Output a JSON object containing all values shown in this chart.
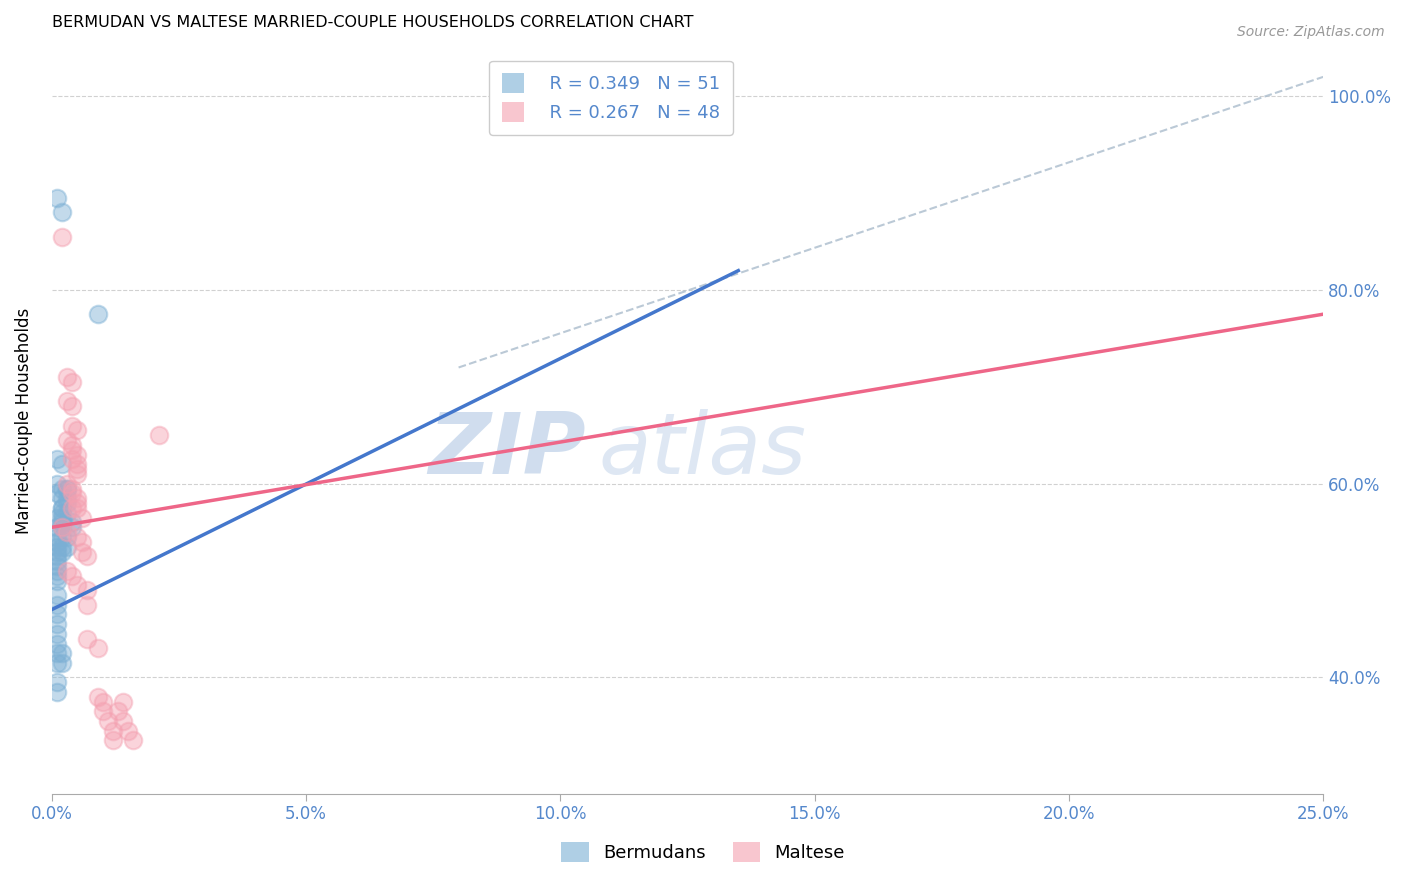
{
  "title": "BERMUDAN VS MALTESE MARRIED-COUPLE HOUSEHOLDS CORRELATION CHART",
  "source": "Source: ZipAtlas.com",
  "xlabel_ticks": [
    "0.0%",
    "5.0%",
    "10.0%",
    "15.0%",
    "20.0%",
    "25.0%"
  ],
  "ylabel_ticks": [
    "40.0%",
    "60.0%",
    "80.0%",
    "100.0%"
  ],
  "ylabel_label": "Married-couple Households",
  "xlim": [
    0.0,
    0.25
  ],
  "ylim": [
    0.28,
    1.05
  ],
  "ytick_vals": [
    0.4,
    0.6,
    0.8,
    1.0
  ],
  "watermark_zip": "ZIP",
  "watermark_atlas": "atlas",
  "legend_blue_r": "R = 0.349",
  "legend_blue_n": "N = 51",
  "legend_pink_r": "R = 0.267",
  "legend_pink_n": "N = 48",
  "legend_blue_label": "Bermudans",
  "legend_pink_label": "Maltese",
  "blue_color": "#7BAFD4",
  "pink_color": "#F4A0B0",
  "blue_scatter": [
    [
      0.001,
      0.895
    ],
    [
      0.002,
      0.88
    ],
    [
      0.001,
      0.625
    ],
    [
      0.002,
      0.62
    ],
    [
      0.001,
      0.6
    ],
    [
      0.002,
      0.595
    ],
    [
      0.001,
      0.59
    ],
    [
      0.002,
      0.585
    ],
    [
      0.002,
      0.575
    ],
    [
      0.003,
      0.595
    ],
    [
      0.001,
      0.565
    ],
    [
      0.002,
      0.57
    ],
    [
      0.001,
      0.555
    ],
    [
      0.002,
      0.56
    ],
    [
      0.001,
      0.545
    ],
    [
      0.001,
      0.54
    ],
    [
      0.001,
      0.535
    ],
    [
      0.001,
      0.53
    ],
    [
      0.001,
      0.525
    ],
    [
      0.001,
      0.52
    ],
    [
      0.001,
      0.515
    ],
    [
      0.001,
      0.51
    ],
    [
      0.001,
      0.505
    ],
    [
      0.001,
      0.5
    ],
    [
      0.002,
      0.575
    ],
    [
      0.002,
      0.565
    ],
    [
      0.002,
      0.555
    ],
    [
      0.002,
      0.545
    ],
    [
      0.002,
      0.535
    ],
    [
      0.002,
      0.53
    ],
    [
      0.003,
      0.58
    ],
    [
      0.003,
      0.57
    ],
    [
      0.003,
      0.595
    ],
    [
      0.003,
      0.585
    ],
    [
      0.003,
      0.545
    ],
    [
      0.003,
      0.535
    ],
    [
      0.004,
      0.56
    ],
    [
      0.004,
      0.555
    ],
    [
      0.001,
      0.485
    ],
    [
      0.001,
      0.475
    ],
    [
      0.001,
      0.465
    ],
    [
      0.001,
      0.455
    ],
    [
      0.001,
      0.445
    ],
    [
      0.001,
      0.435
    ],
    [
      0.001,
      0.425
    ],
    [
      0.001,
      0.415
    ],
    [
      0.001,
      0.395
    ],
    [
      0.001,
      0.385
    ],
    [
      0.002,
      0.425
    ],
    [
      0.002,
      0.415
    ],
    [
      0.009,
      0.775
    ]
  ],
  "pink_scatter": [
    [
      0.002,
      0.855
    ],
    [
      0.003,
      0.71
    ],
    [
      0.004,
      0.705
    ],
    [
      0.003,
      0.685
    ],
    [
      0.004,
      0.68
    ],
    [
      0.004,
      0.66
    ],
    [
      0.005,
      0.655
    ],
    [
      0.003,
      0.645
    ],
    [
      0.004,
      0.64
    ],
    [
      0.004,
      0.635
    ],
    [
      0.005,
      0.63
    ],
    [
      0.004,
      0.625
    ],
    [
      0.005,
      0.62
    ],
    [
      0.005,
      0.615
    ],
    [
      0.005,
      0.61
    ],
    [
      0.003,
      0.6
    ],
    [
      0.004,
      0.595
    ],
    [
      0.004,
      0.59
    ],
    [
      0.005,
      0.585
    ],
    [
      0.005,
      0.58
    ],
    [
      0.004,
      0.575
    ],
    [
      0.005,
      0.575
    ],
    [
      0.006,
      0.565
    ],
    [
      0.005,
      0.545
    ],
    [
      0.006,
      0.54
    ],
    [
      0.006,
      0.53
    ],
    [
      0.007,
      0.525
    ],
    [
      0.003,
      0.51
    ],
    [
      0.004,
      0.505
    ],
    [
      0.005,
      0.495
    ],
    [
      0.007,
      0.49
    ],
    [
      0.007,
      0.475
    ],
    [
      0.007,
      0.44
    ],
    [
      0.009,
      0.43
    ],
    [
      0.009,
      0.38
    ],
    [
      0.01,
      0.375
    ],
    [
      0.01,
      0.365
    ],
    [
      0.011,
      0.355
    ],
    [
      0.012,
      0.345
    ],
    [
      0.012,
      0.335
    ],
    [
      0.013,
      0.365
    ],
    [
      0.014,
      0.375
    ],
    [
      0.014,
      0.355
    ],
    [
      0.015,
      0.345
    ],
    [
      0.016,
      0.335
    ],
    [
      0.021,
      0.65
    ],
    [
      0.002,
      0.555
    ],
    [
      0.003,
      0.55
    ]
  ],
  "blue_line_x": [
    0.0,
    0.135
  ],
  "blue_line_y": [
    0.47,
    0.82
  ],
  "pink_line_x": [
    0.0,
    0.25
  ],
  "pink_line_y": [
    0.555,
    0.775
  ],
  "dashed_line_x": [
    0.08,
    0.25
  ],
  "dashed_line_y": [
    0.72,
    1.02
  ],
  "title_fontsize": 11.5,
  "axis_tick_color": "#5588CC",
  "grid_color": "#CCCCCC",
  "blue_line_color": "#4477CC",
  "pink_line_color": "#EE6688"
}
